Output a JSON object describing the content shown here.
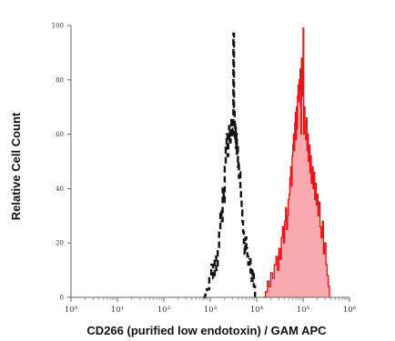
{
  "chart_data": {
    "type": "area",
    "title": "",
    "xlabel": "CD266 (purified low endotoxin) / GAM APC",
    "ylabel": "Relative Cell Count",
    "x_scale": "log",
    "xlim": [
      1,
      1000000
    ],
    "ylim": [
      0,
      100
    ],
    "x_ticks": [
      {
        "value": 1,
        "label": "10⁰"
      },
      {
        "value": 10,
        "label": "10¹"
      },
      {
        "value": 100,
        "label": "10²"
      },
      {
        "value": 1000,
        "label": "10³"
      },
      {
        "value": 10000,
        "label": "10⁴"
      },
      {
        "value": 100000,
        "label": "10⁵"
      },
      {
        "value": 1000000,
        "label": "10⁶"
      }
    ],
    "y_ticks": [
      0,
      20,
      40,
      60,
      80,
      100
    ],
    "grid": false,
    "legend": "none",
    "series": [
      {
        "style": "dashed",
        "color": "#111111",
        "fill": false,
        "x": [
          700,
          780,
          850,
          950,
          1050,
          1150,
          1250,
          1350,
          1450,
          1550,
          1650,
          1750,
          1850,
          1950,
          2050,
          2150,
          2250,
          2350,
          2450,
          2550,
          2650,
          2750,
          2850,
          2950,
          3050,
          3150,
          3250,
          3350,
          3450,
          3550,
          3650,
          3750,
          3850,
          3950,
          4050,
          4150,
          4300,
          4450,
          4600,
          4750,
          4900,
          5100,
          5300,
          5500,
          5750,
          6000,
          6300,
          6600,
          7000,
          7400,
          7800,
          8200,
          8700,
          9200
        ],
        "y": [
          0,
          1,
          3,
          8,
          12,
          7,
          15,
          10,
          18,
          25,
          32,
          28,
          40,
          35,
          48,
          55,
          60,
          52,
          58,
          63,
          57,
          61,
          66,
          59,
          62,
          97,
          70,
          58,
          64,
          55,
          60,
          52,
          56,
          48,
          50,
          44,
          46,
          40,
          36,
          32,
          28,
          24,
          20,
          16,
          22,
          18,
          15,
          12,
          14,
          9,
          6,
          10,
          4,
          0
        ]
      },
      {
        "style": "solid",
        "color": "#e8161b",
        "fill": true,
        "fill_color": "#f8aaae",
        "x": [
          14000,
          15500,
          17000,
          18500,
          20000,
          22000,
          24000,
          26000,
          28000,
          30000,
          32000,
          34000,
          36000,
          38000,
          40000,
          42000,
          44000,
          46000,
          48000,
          50000,
          52000,
          54000,
          56000,
          58000,
          60000,
          62000,
          64000,
          66000,
          68000,
          70000,
          72000,
          74000,
          76000,
          78000,
          80000,
          82000,
          84000,
          86000,
          88000,
          90000,
          92000,
          94000,
          96000,
          98000,
          100000,
          103000,
          106000,
          110000,
          114000,
          118000,
          122000,
          126000,
          130000,
          135000,
          140000,
          145000,
          150000,
          157000,
          164000,
          171000,
          178000,
          185000,
          193000,
          201000,
          210000,
          220000,
          232000,
          245000,
          260000,
          275000,
          290000,
          310000,
          330000,
          350000,
          370000
        ],
        "y": [
          0,
          2,
          6,
          4,
          9,
          7,
          12,
          15,
          10,
          18,
          14,
          22,
          26,
          20,
          28,
          33,
          25,
          30,
          36,
          38,
          44,
          48,
          41,
          52,
          56,
          60,
          54,
          64,
          68,
          58,
          70,
          62,
          74,
          78,
          72,
          80,
          76,
          84,
          70,
          60,
          88,
          82,
          78,
          74,
          99,
          60,
          70,
          64,
          58,
          66,
          54,
          60,
          50,
          56,
          46,
          52,
          42,
          48,
          40,
          46,
          36,
          42,
          34,
          38,
          30,
          35,
          26,
          22,
          28,
          16,
          20,
          12,
          8,
          4,
          0
        ]
      }
    ]
  }
}
